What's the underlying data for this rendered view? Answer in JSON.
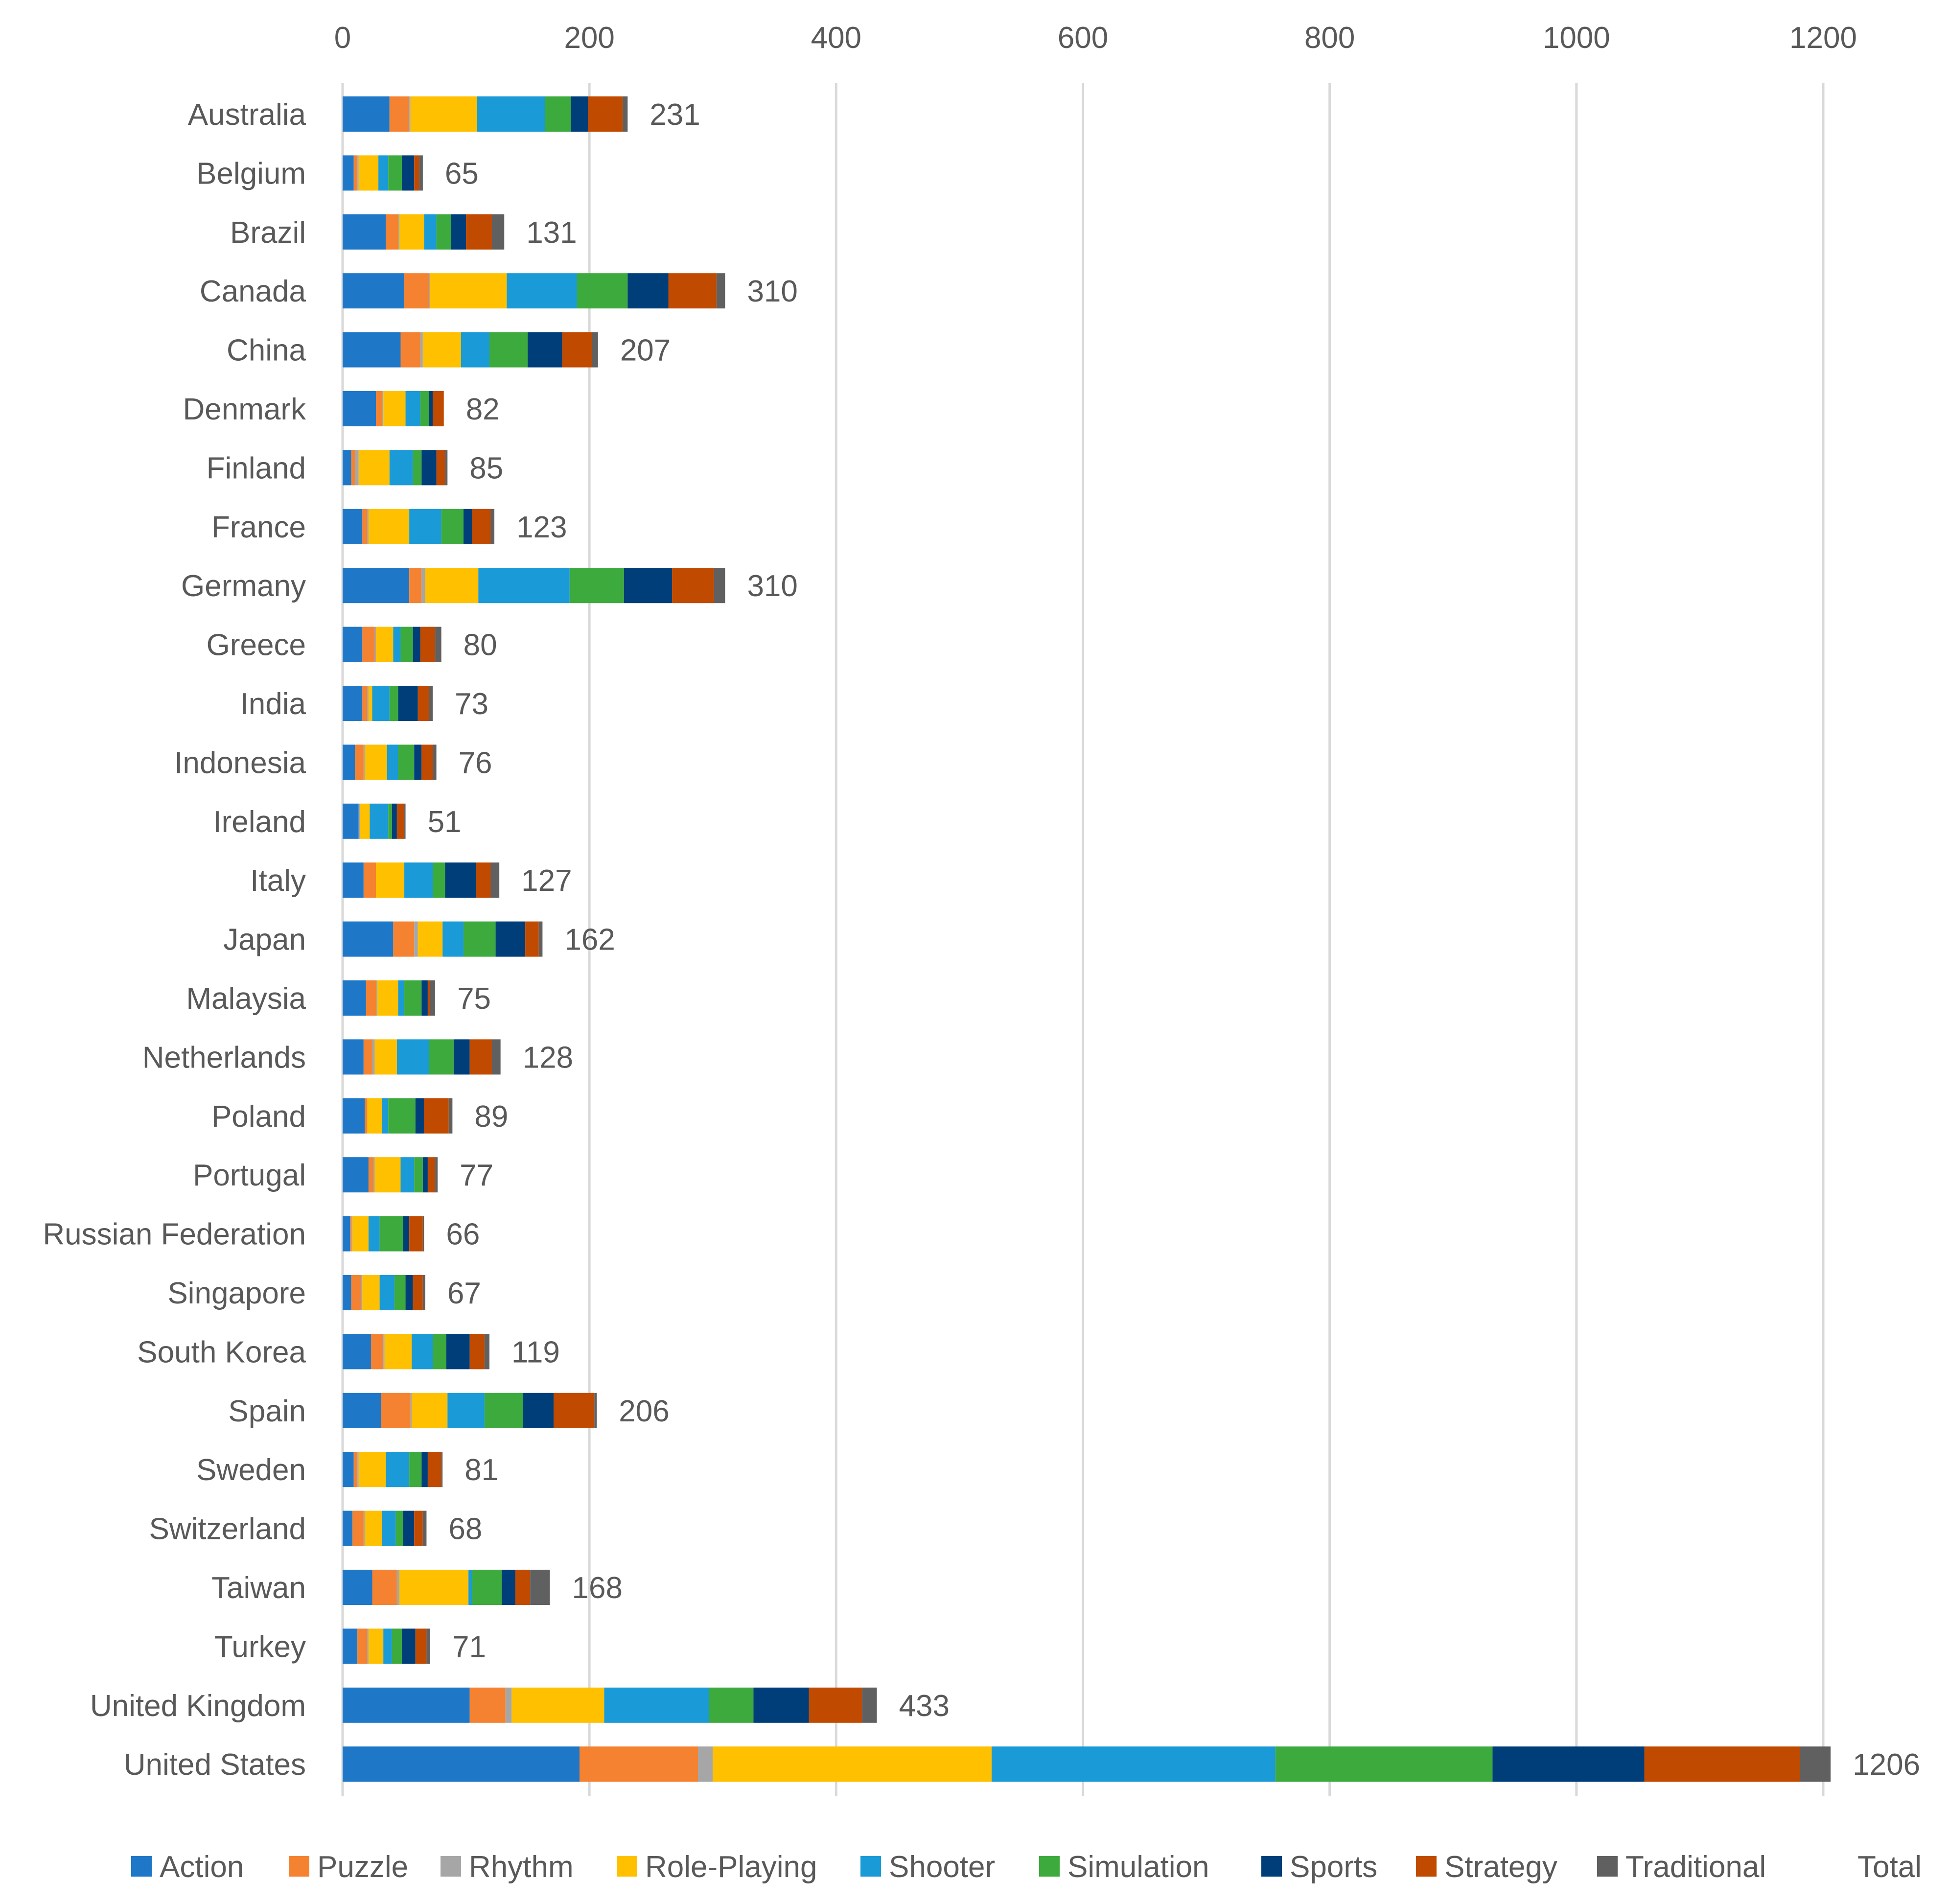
{
  "chart_data": {
    "type": "bar",
    "orientation": "horizontal",
    "stacked": true,
    "title": "",
    "xlabel": "",
    "ylabel": "",
    "xlim": [
      0,
      1200
    ],
    "x_ticks": [
      "0",
      "200",
      "400",
      "600",
      "800",
      "1000",
      "1200"
    ],
    "x_tick_values": [
      0,
      200,
      400,
      600,
      800,
      1000,
      1200
    ],
    "axis_position": "top",
    "grid": true,
    "legend_position": "bottom",
    "categories": [
      "Australia",
      "Belgium",
      "Brazil",
      "Canada",
      "China",
      "Denmark",
      "Finland",
      "France",
      "Germany",
      "Greece",
      "India",
      "Indonesia",
      "Ireland",
      "Italy",
      "Japan",
      "Malaysia",
      "Netherlands",
      "Poland",
      "Portugal",
      "Russian Federation",
      "Singapore",
      "South Korea",
      "Spain",
      "Sweden",
      "Switzerland",
      "Taiwan",
      "Turkey",
      "United Kingdom",
      "United States"
    ],
    "series": [
      {
        "name": "Action",
        "color": "#1F77C8",
        "values": [
          38,
          9,
          35,
          50,
          47,
          27,
          7,
          16,
          54,
          16,
          16,
          10,
          13,
          17,
          41,
          19,
          17,
          18,
          21,
          6,
          7,
          23,
          31,
          9,
          8,
          24,
          12,
          103,
          192
        ]
      },
      {
        "name": "Puzzle",
        "color": "#F58230",
        "values": [
          16,
          3,
          10,
          20,
          16,
          5,
          3,
          4,
          10,
          10,
          4,
          7,
          0,
          10,
          17,
          8,
          7,
          2,
          4,
          1,
          8,
          10,
          24,
          3,
          9,
          20,
          8,
          29,
          96
        ]
      },
      {
        "name": "Rhythm",
        "color": "#A6A6A6",
        "values": [
          1,
          1,
          1,
          1,
          2,
          1,
          3,
          1,
          3,
          1,
          1,
          1,
          1,
          0,
          3,
          1,
          2,
          0,
          1,
          1,
          1,
          1,
          1,
          1,
          1,
          2,
          1,
          5,
          12
        ]
      },
      {
        "name": "Role-Playing",
        "color": "#FFC000",
        "values": [
          54,
          16,
          20,
          62,
          31,
          18,
          25,
          33,
          43,
          14,
          3,
          18,
          8,
          23,
          20,
          17,
          18,
          12,
          21,
          13,
          14,
          22,
          29,
          22,
          14,
          56,
          12,
          75,
          226
        ]
      },
      {
        "name": "Shooter",
        "color": "#1A9AD6",
        "values": [
          55,
          8,
          10,
          57,
          23,
          12,
          19,
          26,
          74,
          6,
          14,
          9,
          15,
          23,
          17,
          5,
          26,
          5,
          11,
          9,
          12,
          17,
          30,
          19,
          11,
          3,
          7,
          85,
          230
        ]
      },
      {
        "name": "Simulation",
        "color": "#3DAA3D",
        "values": [
          21,
          11,
          12,
          41,
          31,
          7,
          7,
          18,
          44,
          10,
          7,
          13,
          3,
          10,
          26,
          14,
          20,
          22,
          7,
          19,
          9,
          11,
          31,
          10,
          6,
          24,
          8,
          36,
          176
        ]
      },
      {
        "name": "Sports",
        "color": "#003E7A",
        "values": [
          14,
          10,
          12,
          33,
          28,
          3,
          12,
          7,
          39,
          6,
          16,
          6,
          4,
          25,
          24,
          5,
          13,
          7,
          4,
          5,
          6,
          19,
          25,
          5,
          9,
          11,
          11,
          45,
          123
        ]
      },
      {
        "name": "Strategy",
        "color": "#C04A00",
        "values": [
          28,
          4,
          21,
          39,
          24,
          9,
          7,
          15,
          34,
          12,
          9,
          9,
          6,
          12,
          11,
          2,
          18,
          20,
          6,
          11,
          8,
          12,
          33,
          11,
          7,
          12,
          9,
          43,
          126
        ]
      },
      {
        "name": "Traditional",
        "color": "#606060",
        "values": [
          4,
          3,
          10,
          7,
          5,
          0,
          2,
          3,
          9,
          5,
          3,
          3,
          1,
          7,
          3,
          4,
          7,
          3,
          2,
          1,
          2,
          4,
          2,
          1,
          3,
          16,
          3,
          12,
          25
        ]
      }
    ],
    "totals": [
      231,
      65,
      131,
      310,
      207,
      82,
      85,
      123,
      310,
      80,
      73,
      76,
      51,
      127,
      162,
      75,
      128,
      89,
      77,
      66,
      67,
      119,
      206,
      81,
      68,
      168,
      71,
      433,
      1206
    ],
    "legend_entries": [
      "Action",
      "Puzzle",
      "Rhythm",
      "Role-Playing",
      "Shooter",
      "Simulation",
      "Sports",
      "Strategy",
      "Traditional",
      "Total"
    ]
  }
}
